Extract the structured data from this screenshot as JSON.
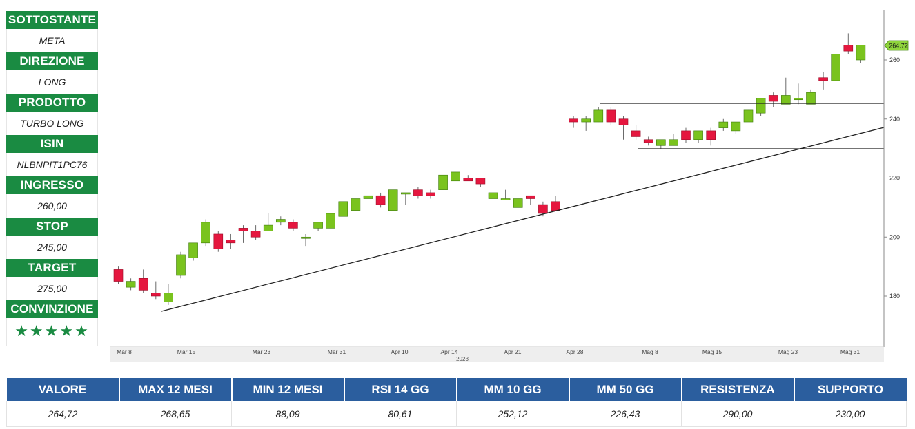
{
  "panel": {
    "rows": [
      {
        "label": "SOTTOSTANTE",
        "value": "META"
      },
      {
        "label": "DIREZIONE",
        "value": "LONG"
      },
      {
        "label": "PRODOTTO",
        "value": "TURBO LONG"
      },
      {
        "label": "ISIN",
        "value": "NLBNPIT1PC76"
      },
      {
        "label": "INGRESSO",
        "value": "260,00"
      },
      {
        "label": "STOP",
        "value": "245,00"
      },
      {
        "label": "TARGET",
        "value": "275,00"
      }
    ],
    "conviction_label": "CONVINZIONE",
    "conviction_stars": "★★★★★",
    "conviction_rating": 5,
    "header_color": "#1a8b42"
  },
  "stats": {
    "headers": [
      "VALORE",
      "MAX 12 MESI",
      "MIN 12 MESI",
      "RSI 14 GG",
      "MM 10 GG",
      "MM 50 GG",
      "RESISTENZA",
      "SUPPORTO"
    ],
    "values": [
      "264,72",
      "268,65",
      "88,09",
      "80,61",
      "252,12",
      "226,43",
      "290,00",
      "230,00"
    ],
    "header_color": "#2b5e9e"
  },
  "chart_data": {
    "type": "candlestick",
    "x_ticks": [
      "Mar 8",
      "Mar 15",
      "Mar 23",
      "Mar 31",
      "Apr 10",
      "Apr 14",
      "Apr 21",
      "Apr 28",
      "Mag 8",
      "Mag 15",
      "Mag 23",
      "Mag 31"
    ],
    "year_label": "2023",
    "y_ticks": [
      180,
      200,
      220,
      240,
      260
    ],
    "ylim": [
      168,
      278
    ],
    "last_price_label": "264.72",
    "up_color": "#7ac31e",
    "down_color": "#e5173f",
    "candles": [
      {
        "o": 189,
        "h": 190,
        "l": 184,
        "c": 185
      },
      {
        "o": 183,
        "h": 186,
        "l": 182,
        "c": 185
      },
      {
        "o": 186,
        "h": 189,
        "l": 181,
        "c": 182
      },
      {
        "o": 181,
        "h": 185,
        "l": 179,
        "c": 180
      },
      {
        "o": 178,
        "h": 184,
        "l": 177,
        "c": 181
      },
      {
        "o": 187,
        "h": 195,
        "l": 186,
        "c": 194
      },
      {
        "o": 193,
        "h": 198,
        "l": 192,
        "c": 198
      },
      {
        "o": 198,
        "h": 206,
        "l": 197,
        "c": 205
      },
      {
        "o": 201,
        "h": 202,
        "l": 195,
        "c": 196
      },
      {
        "o": 199,
        "h": 201,
        "l": 196,
        "c": 198
      },
      {
        "o": 203,
        "h": 204,
        "l": 198,
        "c": 202
      },
      {
        "o": 202,
        "h": 204,
        "l": 199,
        "c": 200
      },
      {
        "o": 202,
        "h": 208,
        "l": 202,
        "c": 204
      },
      {
        "o": 205,
        "h": 207,
        "l": 204,
        "c": 206
      },
      {
        "o": 205,
        "h": 206,
        "l": 202,
        "c": 203
      },
      {
        "o": 200,
        "h": 201,
        "l": 197,
        "c": 200
      },
      {
        "o": 203,
        "h": 205,
        "l": 202,
        "c": 205
      },
      {
        "o": 203,
        "h": 208,
        "l": 203,
        "c": 208
      },
      {
        "o": 207,
        "h": 212,
        "l": 207,
        "c": 212
      },
      {
        "o": 209,
        "h": 213,
        "l": 209,
        "c": 213
      },
      {
        "o": 213,
        "h": 216,
        "l": 212,
        "c": 214
      },
      {
        "o": 214,
        "h": 215,
        "l": 210,
        "c": 211
      },
      {
        "o": 209,
        "h": 216,
        "l": 209,
        "c": 216
      },
      {
        "o": 215,
        "h": 215,
        "l": 211,
        "c": 215
      },
      {
        "o": 216,
        "h": 217,
        "l": 213,
        "c": 214
      },
      {
        "o": 215,
        "h": 216,
        "l": 213,
        "c": 214
      },
      {
        "o": 216,
        "h": 221,
        "l": 216,
        "c": 221
      },
      {
        "o": 219,
        "h": 222,
        "l": 219,
        "c": 222
      },
      {
        "o": 220,
        "h": 221,
        "l": 219,
        "c": 219
      },
      {
        "o": 220,
        "h": 220,
        "l": 217,
        "c": 218
      },
      {
        "o": 213,
        "h": 217,
        "l": 213,
        "c": 215
      },
      {
        "o": 213,
        "h": 216,
        "l": 213,
        "c": 213
      },
      {
        "o": 210,
        "h": 213,
        "l": 210,
        "c": 213
      },
      {
        "o": 214,
        "h": 214,
        "l": 211,
        "c": 213
      },
      {
        "o": 211,
        "h": 212,
        "l": 207,
        "c": 208
      },
      {
        "o": 212,
        "h": 214,
        "l": 209,
        "c": 209
      },
      {
        "o": 240,
        "h": 241,
        "l": 237,
        "c": 239
      },
      {
        "o": 239,
        "h": 241,
        "l": 236,
        "c": 240
      },
      {
        "o": 239,
        "h": 244,
        "l": 239,
        "c": 243
      },
      {
        "o": 243,
        "h": 244,
        "l": 238,
        "c": 239
      },
      {
        "o": 240,
        "h": 241,
        "l": 233,
        "c": 238
      },
      {
        "o": 236,
        "h": 238,
        "l": 233,
        "c": 234
      },
      {
        "o": 233,
        "h": 234,
        "l": 231,
        "c": 232
      },
      {
        "o": 231,
        "h": 233,
        "l": 230,
        "c": 233
      },
      {
        "o": 231,
        "h": 235,
        "l": 231,
        "c": 233
      },
      {
        "o": 236,
        "h": 237,
        "l": 232,
        "c": 233
      },
      {
        "o": 233,
        "h": 236,
        "l": 232,
        "c": 236
      },
      {
        "o": 236,
        "h": 237,
        "l": 231,
        "c": 233
      },
      {
        "o": 237,
        "h": 240,
        "l": 236,
        "c": 239
      },
      {
        "o": 236,
        "h": 239,
        "l": 235,
        "c": 239
      },
      {
        "o": 239,
        "h": 243,
        "l": 239,
        "c": 243
      },
      {
        "o": 242,
        "h": 247,
        "l": 241,
        "c": 247
      },
      {
        "o": 248,
        "h": 249,
        "l": 244,
        "c": 246
      },
      {
        "o": 245,
        "h": 254,
        "l": 245,
        "c": 248
      },
      {
        "o": 247,
        "h": 252,
        "l": 245,
        "c": 247
      },
      {
        "o": 245,
        "h": 250,
        "l": 245,
        "c": 249
      },
      {
        "o": 254,
        "h": 256,
        "l": 250,
        "c": 253
      },
      {
        "o": 253,
        "h": 262,
        "l": 253,
        "c": 262
      },
      {
        "o": 265,
        "h": 269,
        "l": 262,
        "c": 263
      },
      {
        "o": 260,
        "h": 265,
        "l": 259,
        "c": 265
      }
    ]
  }
}
